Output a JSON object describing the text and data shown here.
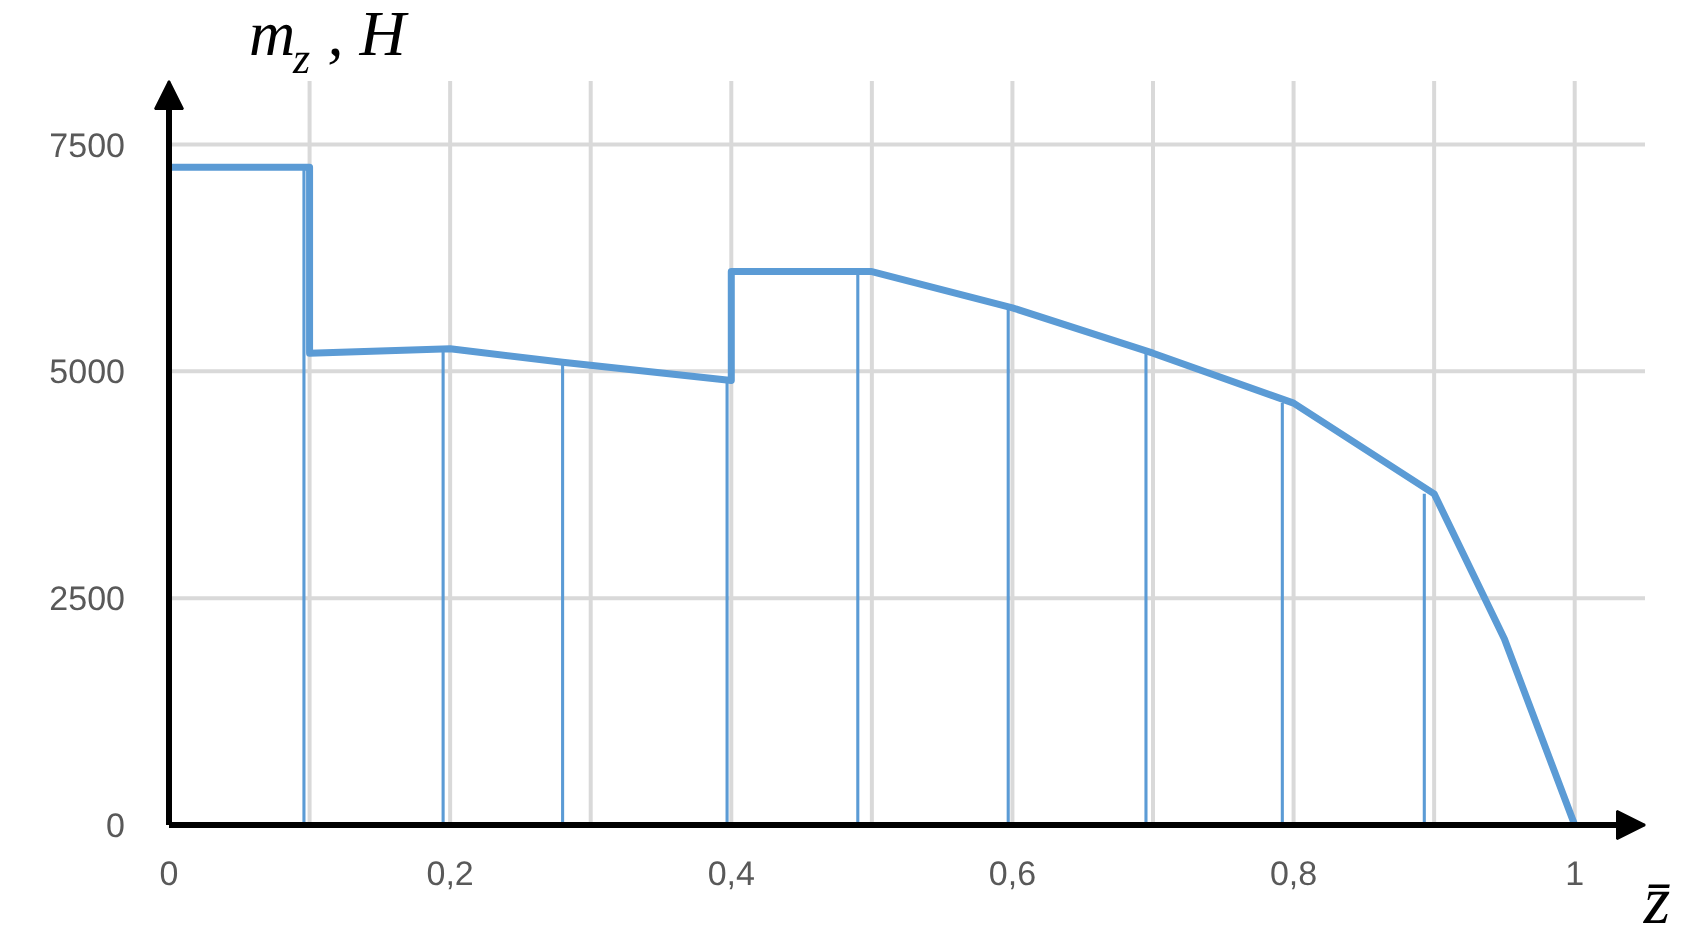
{
  "chart_data": {
    "type": "line",
    "xlabel": "z̄",
    "ylabel": "m$_{z}$, Н",
    "xlim": [
      0,
      1.05
    ],
    "ylim": [
      0,
      8200
    ],
    "xticks": [
      0,
      {
        "value": 0.1,
        "label": null
      },
      {
        "value": 0.2,
        "label": "0,2"
      },
      {
        "value": 0.3,
        "label": null
      },
      {
        "value": 0.4,
        "label": "0,4"
      },
      {
        "value": 0.5,
        "label": null
      },
      {
        "value": 0.6,
        "label": "0,6"
      },
      {
        "value": 0.7,
        "label": null
      },
      {
        "value": 0.8,
        "label": "0,8"
      },
      {
        "value": 0.9,
        "label": null
      },
      1
    ],
    "yticks": [
      0,
      2500,
      5000,
      7500
    ],
    "grid": true,
    "marker": "none",
    "line_style": "solid",
    "series": [
      {
        "color": "#5b9bd5",
        "x": [
          0,
          0.1,
          0.1,
          0.2,
          0.28,
          0.4,
          0.4,
          0.5,
          0.6,
          0.7,
          0.8,
          0.9,
          0.95,
          1
        ],
        "values": [
          7250,
          7250,
          5200,
          5250,
          5100,
          4900,
          6100,
          6100,
          5700,
          5200,
          4650,
          3650,
          2050,
          0
        ]
      },
      {
        "type": "bar",
        "color": "#5b9bd5",
        "x": [
          0.096,
          0.195,
          0.28,
          0.397,
          0.49,
          0.597,
          0.695,
          0.792,
          0.893
        ],
        "values": [
          7250,
          5250,
          5100,
          4900,
          6100,
          5700,
          5200,
          4650,
          3650
        ]
      }
    ]
  }
}
